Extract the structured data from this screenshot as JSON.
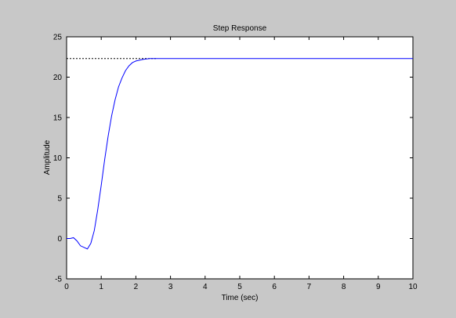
{
  "chart_data": {
    "type": "line",
    "title": "Step Response",
    "x_label": "Time (sec)",
    "y_label": "Amplitude",
    "x": [
      0,
      0.1,
      0.2,
      0.3,
      0.4,
      0.5,
      0.6,
      0.7,
      0.8,
      0.9,
      1.0,
      1.1,
      1.2,
      1.3,
      1.4,
      1.5,
      1.6,
      1.7,
      1.8,
      1.9,
      2.0,
      2.2,
      2.4,
      2.6,
      3,
      10
    ],
    "values": [
      0,
      0,
      0.1,
      -0.3,
      -0.9,
      -1.1,
      -1.3,
      -0.6,
      1.0,
      3.6,
      6.6,
      9.8,
      12.7,
      15.2,
      17.2,
      18.8,
      19.9,
      20.8,
      21.4,
      21.8,
      22.0,
      22.2,
      22.3,
      22.3,
      22.3,
      22.3
    ],
    "color": "#0000ff",
    "reference_line": {
      "value": 22.3,
      "x": [
        0,
        2.6
      ],
      "color": "#000000"
    },
    "xlim": [
      0,
      10
    ],
    "xticks": [
      0,
      1,
      2,
      3,
      4,
      5,
      6,
      7,
      8,
      9,
      10
    ],
    "ylim": [
      -5,
      25
    ],
    "yticks": [
      -5,
      0,
      5,
      10,
      15,
      20,
      25
    ]
  }
}
